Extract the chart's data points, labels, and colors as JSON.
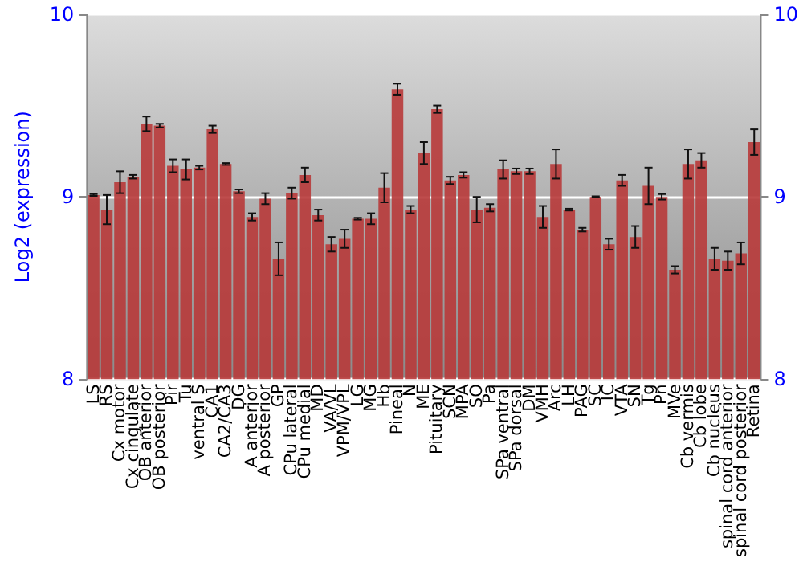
{
  "chart_data": {
    "type": "bar",
    "ylabel": "Log2 (expression)",
    "categories": [
      "LS",
      "RS",
      "Cx motor",
      "Cx cingulate",
      "OB anterior",
      "OB posterior",
      "Pir",
      "Tu",
      "ventral S",
      "CA1",
      "CA2/CA3",
      "DG",
      "A anterior",
      "A posterior",
      "GP",
      "CPu lateral",
      "CPu medial",
      "MD",
      "VA/VL",
      "VPM/VPL",
      "LG",
      "MG",
      "Hb",
      "Pineal",
      "N",
      "ME",
      "Pituitary",
      "SCN",
      "MPA",
      "SO",
      "Pa",
      "SPa ventral",
      "SPa dorsal",
      "DM",
      "VMH",
      "Arc",
      "LH",
      "PAG",
      "SC",
      "IC",
      "VTA",
      "SN",
      "Tg",
      "Pn",
      "MVe",
      "Cb vermis",
      "Cb lobe",
      "Cb nucleus",
      "spinal cord anterior",
      "spinal cord posterior",
      "Retina"
    ],
    "series": [
      {
        "color": "#b83a3a",
        "values": [
          9.01,
          8.93,
          9.08,
          9.11,
          9.4,
          9.39,
          9.17,
          9.15,
          9.16,
          9.37,
          9.18,
          9.03,
          8.89,
          8.99,
          8.66,
          9.02,
          9.12,
          8.9,
          8.74,
          8.77,
          8.88,
          8.88,
          9.05,
          9.59,
          8.93,
          9.24,
          9.48,
          9.09,
          9.12,
          8.93,
          8.94,
          9.15,
          9.14,
          9.14,
          8.89,
          9.18,
          8.93,
          8.82,
          9.0,
          8.74,
          9.09,
          8.78,
          9.06,
          9.0,
          8.6,
          9.18,
          9.2,
          8.66,
          8.65,
          8.69,
          9.3
        ],
        "errors": [
          0.005,
          0.08,
          0.06,
          0.01,
          0.04,
          0.01,
          0.035,
          0.055,
          0.01,
          0.02,
          0.005,
          0.01,
          0.02,
          0.03,
          0.09,
          0.03,
          0.04,
          0.03,
          0.04,
          0.05,
          0.005,
          0.03,
          0.08,
          0.03,
          0.02,
          0.06,
          0.02,
          0.02,
          0.015,
          0.07,
          0.02,
          0.05,
          0.015,
          0.015,
          0.06,
          0.08,
          0.005,
          0.01,
          0.003,
          0.03,
          0.03,
          0.06,
          0.1,
          0.015,
          0.02,
          0.08,
          0.04,
          0.06,
          0.05,
          0.06,
          0.07
        ]
      }
    ],
    "ylim": [
      8,
      10
    ],
    "yticks": [
      8,
      9,
      10
    ],
    "y2lim": [
      8,
      10
    ],
    "y2ticks": [
      8,
      9,
      10
    ],
    "grid": "y"
  }
}
